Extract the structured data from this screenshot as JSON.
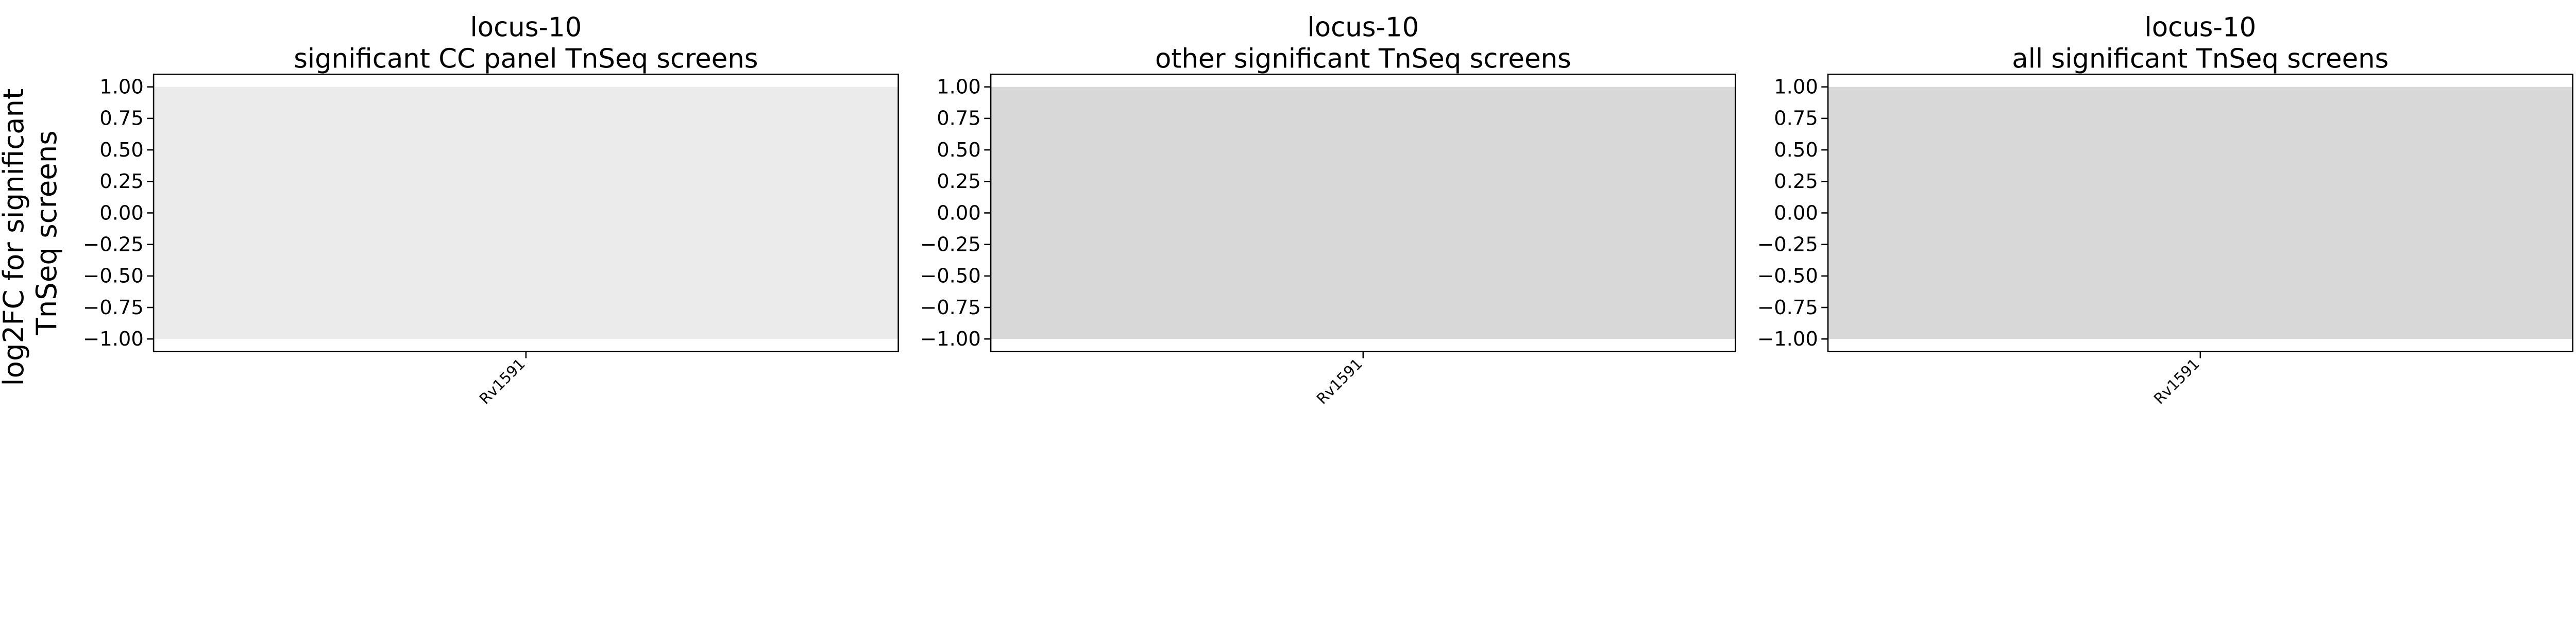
{
  "figure": {
    "ylabel_line1": "log2FC for significant",
    "ylabel_line2": "TnSeq screens"
  },
  "chart_data": [
    {
      "type": "heatmap",
      "title_line1": "locus-10",
      "title_line2": "significant CC panel TnSeq screens",
      "categories": [
        "Rv1591"
      ],
      "ylim": [
        -1.1,
        1.1
      ],
      "yticks": [
        1.0,
        0.75,
        0.5,
        0.25,
        0.0,
        -0.25,
        -0.5,
        -0.75,
        -1.0
      ],
      "ytick_labels": [
        "1.00",
        "0.75",
        "0.50",
        "0.25",
        "0.00",
        "−0.25",
        "−0.50",
        "−0.75",
        "−1.00"
      ],
      "band": [
        -1.0,
        1.0
      ],
      "band_color": "#ebebeb",
      "grid": false
    },
    {
      "type": "heatmap",
      "title_line1": "locus-10",
      "title_line2": "other significant TnSeq screens",
      "categories": [
        "Rv1591"
      ],
      "ylim": [
        -1.1,
        1.1
      ],
      "yticks": [
        1.0,
        0.75,
        0.5,
        0.25,
        0.0,
        -0.25,
        -0.5,
        -0.75,
        -1.0
      ],
      "ytick_labels": [
        "1.00",
        "0.75",
        "0.50",
        "0.25",
        "0.00",
        "−0.25",
        "−0.50",
        "−0.75",
        "−1.00"
      ],
      "band": [
        -1.0,
        1.0
      ],
      "band_color": "#d8d8d8",
      "grid": false
    },
    {
      "type": "heatmap",
      "title_line1": "locus-10",
      "title_line2": "all significant TnSeq screens",
      "categories": [
        "Rv1591"
      ],
      "ylim": [
        -1.1,
        1.1
      ],
      "yticks": [
        1.0,
        0.75,
        0.5,
        0.25,
        0.0,
        -0.25,
        -0.5,
        -0.75,
        -1.0
      ],
      "ytick_labels": [
        "1.00",
        "0.75",
        "0.50",
        "0.25",
        "0.00",
        "−0.25",
        "−0.50",
        "−0.75",
        "−1.00"
      ],
      "band": [
        -1.0,
        1.0
      ],
      "band_color": "#d8d8d8",
      "grid": false
    }
  ]
}
